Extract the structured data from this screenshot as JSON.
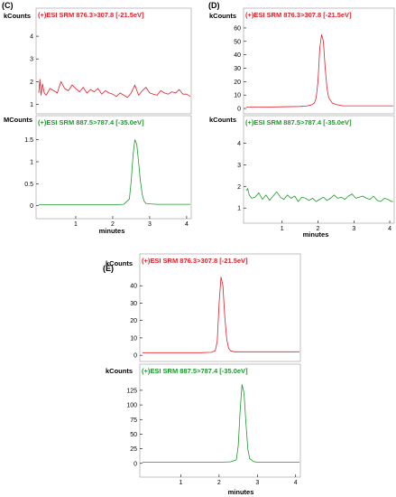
{
  "colors": {
    "red": "#e0202a",
    "green": "#1a9a2a",
    "axis": "#000000",
    "box": "#9a9a9a"
  },
  "chart_data": [
    {
      "panel": "(C)",
      "type": "line",
      "xlabel": "minutes",
      "traces": [
        {
          "title": "(+)ESI SRM 876.3>307.8 [-21.5eV]",
          "unit": "kCounts",
          "color": "red",
          "xlim": [
            0,
            4.1
          ],
          "ylim": [
            0.7,
            4.6
          ],
          "xticks": [
            1,
            2,
            3,
            4
          ],
          "yticks": [
            1,
            2,
            3,
            4
          ],
          "x": [
            0.0,
            0.03,
            0.06,
            0.1,
            0.15,
            0.2,
            0.3,
            0.4,
            0.5,
            0.55,
            0.6,
            0.7,
            0.8,
            0.9,
            1.0,
            1.1,
            1.2,
            1.3,
            1.4,
            1.5,
            1.6,
            1.7,
            1.8,
            1.9,
            2.0,
            2.1,
            2.2,
            2.3,
            2.4,
            2.5,
            2.6,
            2.7,
            2.8,
            2.9,
            3.0,
            3.1,
            3.2,
            3.3,
            3.4,
            3.5,
            3.6,
            3.7,
            3.8,
            3.9,
            4.0,
            4.1
          ],
          "y": [
            1.5,
            2.1,
            1.4,
            1.9,
            1.5,
            1.4,
            1.7,
            1.6,
            1.5,
            1.75,
            2.0,
            1.7,
            1.6,
            1.85,
            1.7,
            1.55,
            1.75,
            1.5,
            1.65,
            1.55,
            1.7,
            1.45,
            1.6,
            1.5,
            1.45,
            1.35,
            1.5,
            1.4,
            1.3,
            1.5,
            1.85,
            1.4,
            1.6,
            1.75,
            1.5,
            1.45,
            1.4,
            1.6,
            1.5,
            1.45,
            1.55,
            1.5,
            1.65,
            1.45,
            1.45,
            1.35
          ]
        },
        {
          "title": "(+)ESI SRM 887.5>787.4 [-35.0eV]",
          "unit": "MCounts",
          "color": "green",
          "xlim": [
            0,
            4.1
          ],
          "ylim": [
            -0.05,
            1.72
          ],
          "xticks": [
            1,
            2,
            3,
            4
          ],
          "yticks": [
            0,
            0.5,
            1.0,
            1.5
          ],
          "x": [
            0.0,
            0.5,
            1.0,
            1.5,
            2.0,
            2.3,
            2.45,
            2.5,
            2.55,
            2.6,
            2.65,
            2.7,
            2.75,
            2.8,
            2.85,
            2.9,
            3.0,
            3.2,
            3.5,
            4.0,
            4.1
          ],
          "y": [
            0.02,
            0.02,
            0.02,
            0.02,
            0.02,
            0.03,
            0.15,
            0.55,
            1.15,
            1.5,
            1.4,
            1.0,
            0.55,
            0.25,
            0.1,
            0.05,
            0.04,
            0.03,
            0.03,
            0.03,
            0.03
          ]
        }
      ]
    },
    {
      "panel": "(D)",
      "type": "line",
      "xlabel": "minutes",
      "traces": [
        {
          "title": "(+)ESI SRM 876.3>307.8 [-21.5eV]",
          "unit": "kCounts",
          "color": "red",
          "xlim": [
            0,
            4.1
          ],
          "ylim": [
            -2,
            64
          ],
          "xticks": [
            1,
            2,
            3,
            4
          ],
          "yticks": [
            0,
            10,
            20,
            30,
            40,
            50,
            60
          ],
          "x": [
            0.0,
            0.5,
            1.0,
            1.5,
            1.7,
            1.8,
            1.9,
            1.95,
            2.0,
            2.05,
            2.1,
            2.15,
            2.2,
            2.25,
            2.3,
            2.4,
            2.5,
            2.7,
            3.0,
            3.5,
            4.0,
            4.1
          ],
          "y": [
            1,
            1,
            1.2,
            1.5,
            2,
            2.5,
            4,
            8,
            20,
            45,
            55,
            50,
            30,
            15,
            8,
            4,
            3,
            2,
            2,
            2,
            2,
            2
          ]
        },
        {
          "title": "(+)ESI SRM 887.5>787.4 [-35.0eV]",
          "unit": "kCounts",
          "color": "green",
          "xlim": [
            0,
            4.1
          ],
          "ylim": [
            0.8,
            4.6
          ],
          "xticks": [
            1,
            2,
            3,
            4
          ],
          "yticks": [
            1,
            2,
            3,
            4
          ],
          "x": [
            0.0,
            0.04,
            0.08,
            0.15,
            0.25,
            0.35,
            0.45,
            0.55,
            0.65,
            0.75,
            0.85,
            0.95,
            1.05,
            1.15,
            1.25,
            1.35,
            1.45,
            1.55,
            1.65,
            1.75,
            1.85,
            1.95,
            2.05,
            2.15,
            2.25,
            2.35,
            2.45,
            2.55,
            2.65,
            2.75,
            2.85,
            2.95,
            3.05,
            3.15,
            3.25,
            3.35,
            3.45,
            3.55,
            3.65,
            3.75,
            3.85,
            3.95,
            4.05,
            4.1
          ],
          "y": [
            1.8,
            1.9,
            1.6,
            1.45,
            1.5,
            1.7,
            1.4,
            1.6,
            1.35,
            1.55,
            1.75,
            1.5,
            1.4,
            1.6,
            1.45,
            1.55,
            1.3,
            1.5,
            1.45,
            1.35,
            1.45,
            1.3,
            1.4,
            1.5,
            1.35,
            1.45,
            1.6,
            1.45,
            1.5,
            1.4,
            1.55,
            1.65,
            1.45,
            1.5,
            1.55,
            1.45,
            1.4,
            1.55,
            1.35,
            1.3,
            1.45,
            1.4,
            1.3,
            1.3
          ]
        }
      ]
    },
    {
      "panel": "(E)",
      "type": "line",
      "xlabel": "minutes",
      "traces": [
        {
          "title": "(+)ESI SRM 876.3>307.8 [-21.5eV]",
          "unit": "kCounts",
          "color": "red",
          "xlim": [
            0,
            4.1
          ],
          "ylim": [
            -2,
            50
          ],
          "xticks": [
            1,
            2,
            3,
            4
          ],
          "yticks": [
            0,
            10,
            20,
            30,
            40
          ],
          "x": [
            0.0,
            0.5,
            1.0,
            1.5,
            1.8,
            1.9,
            1.95,
            2.0,
            2.05,
            2.1,
            2.15,
            2.2,
            2.25,
            2.3,
            2.4,
            2.6,
            3.0,
            3.5,
            4.0,
            4.1
          ],
          "y": [
            1.5,
            1.5,
            1.5,
            1.5,
            1.7,
            2.5,
            8,
            30,
            45,
            40,
            22,
            9,
            4,
            2.5,
            2,
            2,
            2,
            2,
            2,
            2
          ]
        },
        {
          "title": "(+)ESI SRM 887.5>787.4 [-35.0eV]",
          "unit": "kCounts",
          "color": "green",
          "xlim": [
            0,
            4.1
          ],
          "ylim": [
            -5,
            145
          ],
          "xticks": [
            1,
            2,
            3,
            4
          ],
          "yticks": [
            0,
            25,
            50,
            75,
            100,
            125
          ],
          "x": [
            0.0,
            0.5,
            1.0,
            1.5,
            2.0,
            2.3,
            2.45,
            2.5,
            2.55,
            2.6,
            2.65,
            2.7,
            2.75,
            2.8,
            2.9,
            3.0,
            3.2,
            3.5,
            4.0,
            4.1
          ],
          "y": [
            2,
            2,
            2,
            2,
            2,
            2.5,
            6,
            30,
            90,
            135,
            120,
            70,
            25,
            8,
            3,
            2,
            2,
            2,
            2,
            2
          ]
        }
      ]
    }
  ]
}
